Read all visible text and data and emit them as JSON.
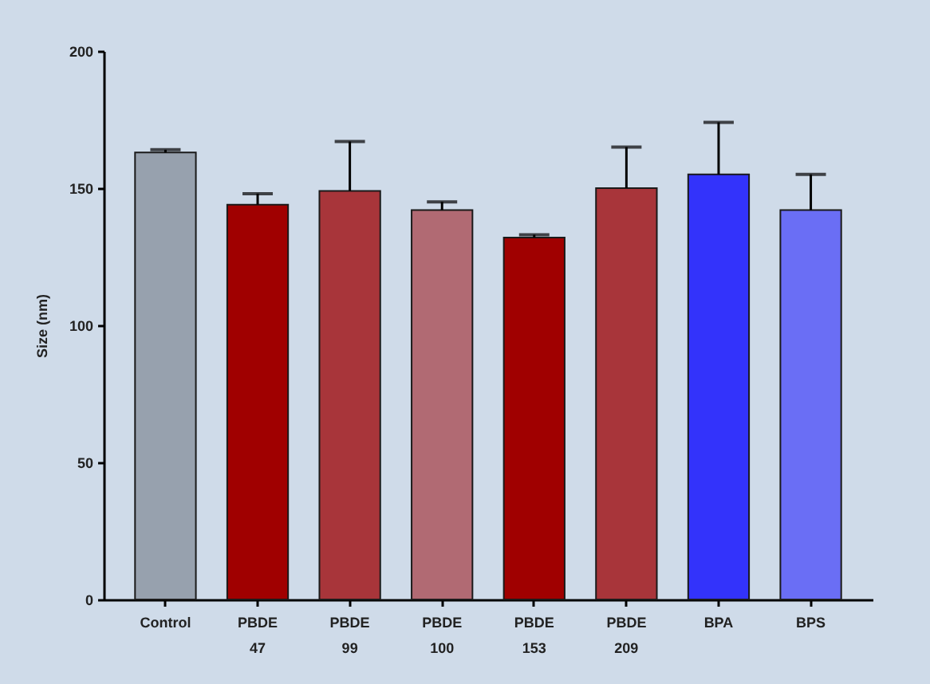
{
  "chart_data": {
    "type": "bar",
    "ylabel": "Size (nm)",
    "categories": [
      "Control",
      "PBDE 47",
      "PBDE 99",
      "PBDE 100",
      "PBDE 153",
      "PBDE 209",
      "BPA",
      "BPS"
    ],
    "values": [
      163,
      144,
      149,
      142,
      132,
      150,
      155,
      142
    ],
    "colors": [
      "#97a1ae",
      "#a00000",
      "#a8353a",
      "#b16a73",
      "#a00000",
      "#a8353a",
      "#3333fb",
      "#6a6ef5"
    ],
    "errors": [
      [
        163,
        164
      ],
      [
        144,
        148
      ],
      [
        149,
        167
      ],
      [
        142,
        145
      ],
      [
        132,
        133
      ],
      [
        150,
        165
      ],
      [
        155,
        174
      ],
      [
        142,
        155
      ]
    ],
    "ylim": [
      0,
      200
    ],
    "yticks": [
      0,
      50,
      100,
      150,
      200
    ]
  }
}
